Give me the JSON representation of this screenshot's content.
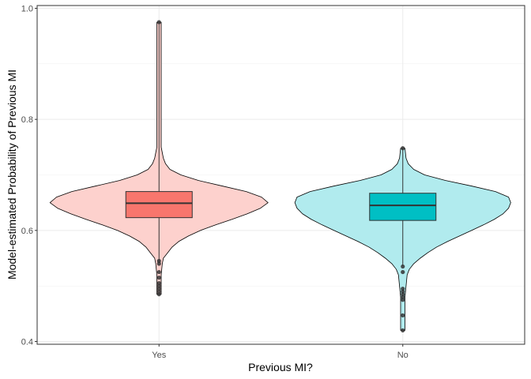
{
  "chart_data": {
    "type": "violin+boxplot",
    "xlabel": "Previous MI?",
    "ylabel": "Model-estimated Probability of Previous MI",
    "ylim": [
      0.395,
      1.005
    ],
    "y_ticks": [
      0.4,
      0.6,
      0.8,
      1.0
    ],
    "y_tick_labels": [
      "0.4",
      "0.6",
      "0.8",
      "1.0"
    ],
    "grid": true,
    "legend": "none",
    "categories": [
      "Yes",
      "No"
    ],
    "groups": [
      {
        "name": "Yes",
        "violin_color": "#FDD1CD",
        "box_color": "#F8766D",
        "min": 0.543,
        "q1": 0.623,
        "median": 0.649,
        "q3": 0.67,
        "max": 0.975,
        "density": [
          [
            0.485,
            0.02
          ],
          [
            0.5,
            0.02
          ],
          [
            0.52,
            0.02
          ],
          [
            0.54,
            0.03
          ],
          [
            0.55,
            0.04
          ],
          [
            0.56,
            0.08
          ],
          [
            0.57,
            0.12
          ],
          [
            0.58,
            0.18
          ],
          [
            0.59,
            0.27
          ],
          [
            0.6,
            0.38
          ],
          [
            0.61,
            0.52
          ],
          [
            0.62,
            0.67
          ],
          [
            0.63,
            0.81
          ],
          [
            0.64,
            0.93
          ],
          [
            0.65,
            1.0
          ],
          [
            0.66,
            0.94
          ],
          [
            0.67,
            0.8
          ],
          [
            0.68,
            0.58
          ],
          [
            0.69,
            0.36
          ],
          [
            0.7,
            0.2
          ],
          [
            0.71,
            0.1
          ],
          [
            0.72,
            0.06
          ],
          [
            0.73,
            0.04
          ],
          [
            0.74,
            0.03
          ],
          [
            0.75,
            0.02
          ],
          [
            0.8,
            0.02
          ],
          [
            0.9,
            0.02
          ],
          [
            0.975,
            0.02
          ]
        ],
        "outliers": [
          0.975,
          0.545,
          0.54,
          0.525,
          0.515,
          0.505,
          0.5,
          0.495,
          0.49,
          0.485
        ]
      },
      {
        "name": "No",
        "violin_color": "#B1EBEE",
        "box_color": "#00BFC4",
        "min": 0.536,
        "q1": 0.618,
        "median": 0.645,
        "q3": 0.667,
        "max": 0.748,
        "density": [
          [
            0.42,
            0.02
          ],
          [
            0.45,
            0.02
          ],
          [
            0.48,
            0.02
          ],
          [
            0.5,
            0.03
          ],
          [
            0.52,
            0.04
          ],
          [
            0.53,
            0.06
          ],
          [
            0.54,
            0.1
          ],
          [
            0.55,
            0.16
          ],
          [
            0.56,
            0.23
          ],
          [
            0.57,
            0.31
          ],
          [
            0.58,
            0.41
          ],
          [
            0.59,
            0.52
          ],
          [
            0.6,
            0.63
          ],
          [
            0.61,
            0.74
          ],
          [
            0.62,
            0.84
          ],
          [
            0.63,
            0.92
          ],
          [
            0.64,
            0.97
          ],
          [
            0.65,
            0.99
          ],
          [
            0.66,
            0.97
          ],
          [
            0.67,
            0.85
          ],
          [
            0.68,
            0.63
          ],
          [
            0.69,
            0.39
          ],
          [
            0.7,
            0.2
          ],
          [
            0.71,
            0.1
          ],
          [
            0.72,
            0.05
          ],
          [
            0.73,
            0.03
          ],
          [
            0.748,
            0.02
          ]
        ],
        "outliers": [
          0.748,
          0.535,
          0.525,
          0.495,
          0.49,
          0.485,
          0.48,
          0.475,
          0.447,
          0.42
        ]
      }
    ]
  }
}
